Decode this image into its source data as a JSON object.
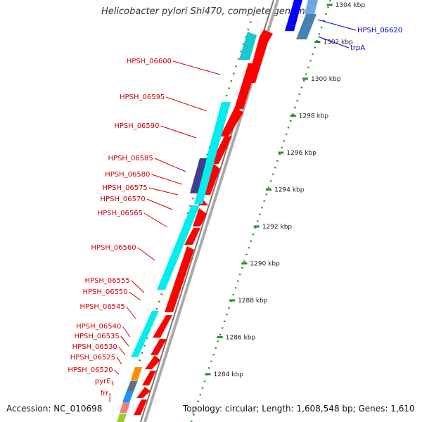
{
  "title": "Helicobacter pylori Shi470, complete genome",
  "accession": "Accession: NC_010698",
  "topology": "Topology: circular; Length: 1,608,548 bp; Genes: 1,610",
  "colors": {
    "forward_gene": "#ff0000",
    "reverse_gene": "#00e5ee",
    "label_left": "#cc0000",
    "label_right": "#0000cc",
    "ticks": "#2e8b2e",
    "backbone": "#999999"
  },
  "scale": {
    "unit": "kbp",
    "ticks": [
      {
        "label": "1304 kbp",
        "kbp": 1304
      },
      {
        "label": "1302 kbp",
        "kbp": 1302
      },
      {
        "label": "1300 kbp",
        "kbp": 1300
      },
      {
        "label": "1298 kbp",
        "kbp": 1298
      },
      {
        "label": "1296 kbp",
        "kbp": 1296
      },
      {
        "label": "1294 kbp",
        "kbp": 1294
      },
      {
        "label": "1292 kbp",
        "kbp": 1292
      },
      {
        "label": "1290 kbp",
        "kbp": 1290
      },
      {
        "label": "1288 kbp",
        "kbp": 1288
      },
      {
        "label": "1286 kbp",
        "kbp": 1286
      },
      {
        "label": "1284 kbp",
        "kbp": 1284
      }
    ]
  },
  "genes_left": [
    {
      "label": "HPSH_06600"
    },
    {
      "label": "HPSH_06595"
    },
    {
      "label": "HPSH_06590"
    },
    {
      "label": "HPSH_06585"
    },
    {
      "label": "HPSH_06580"
    },
    {
      "label": "HPSH_06575"
    },
    {
      "label": "HPSH_06570"
    },
    {
      "label": "HPSH_06565"
    },
    {
      "label": "HPSH_06560"
    },
    {
      "label": "HPSH_06555"
    },
    {
      "label": "HPSH_06550"
    },
    {
      "label": "HPSH_06545"
    },
    {
      "label": "HPSH_06540"
    },
    {
      "label": "HPSH_06535"
    },
    {
      "label": "HPSH_06530"
    },
    {
      "label": "HPSH_06525"
    },
    {
      "label": "HPSH_06520"
    },
    {
      "label": "pyrE"
    },
    {
      "label": "frr"
    }
  ],
  "genes_right": [
    {
      "label": "HPSH_06620"
    },
    {
      "label": "trpA"
    }
  ]
}
